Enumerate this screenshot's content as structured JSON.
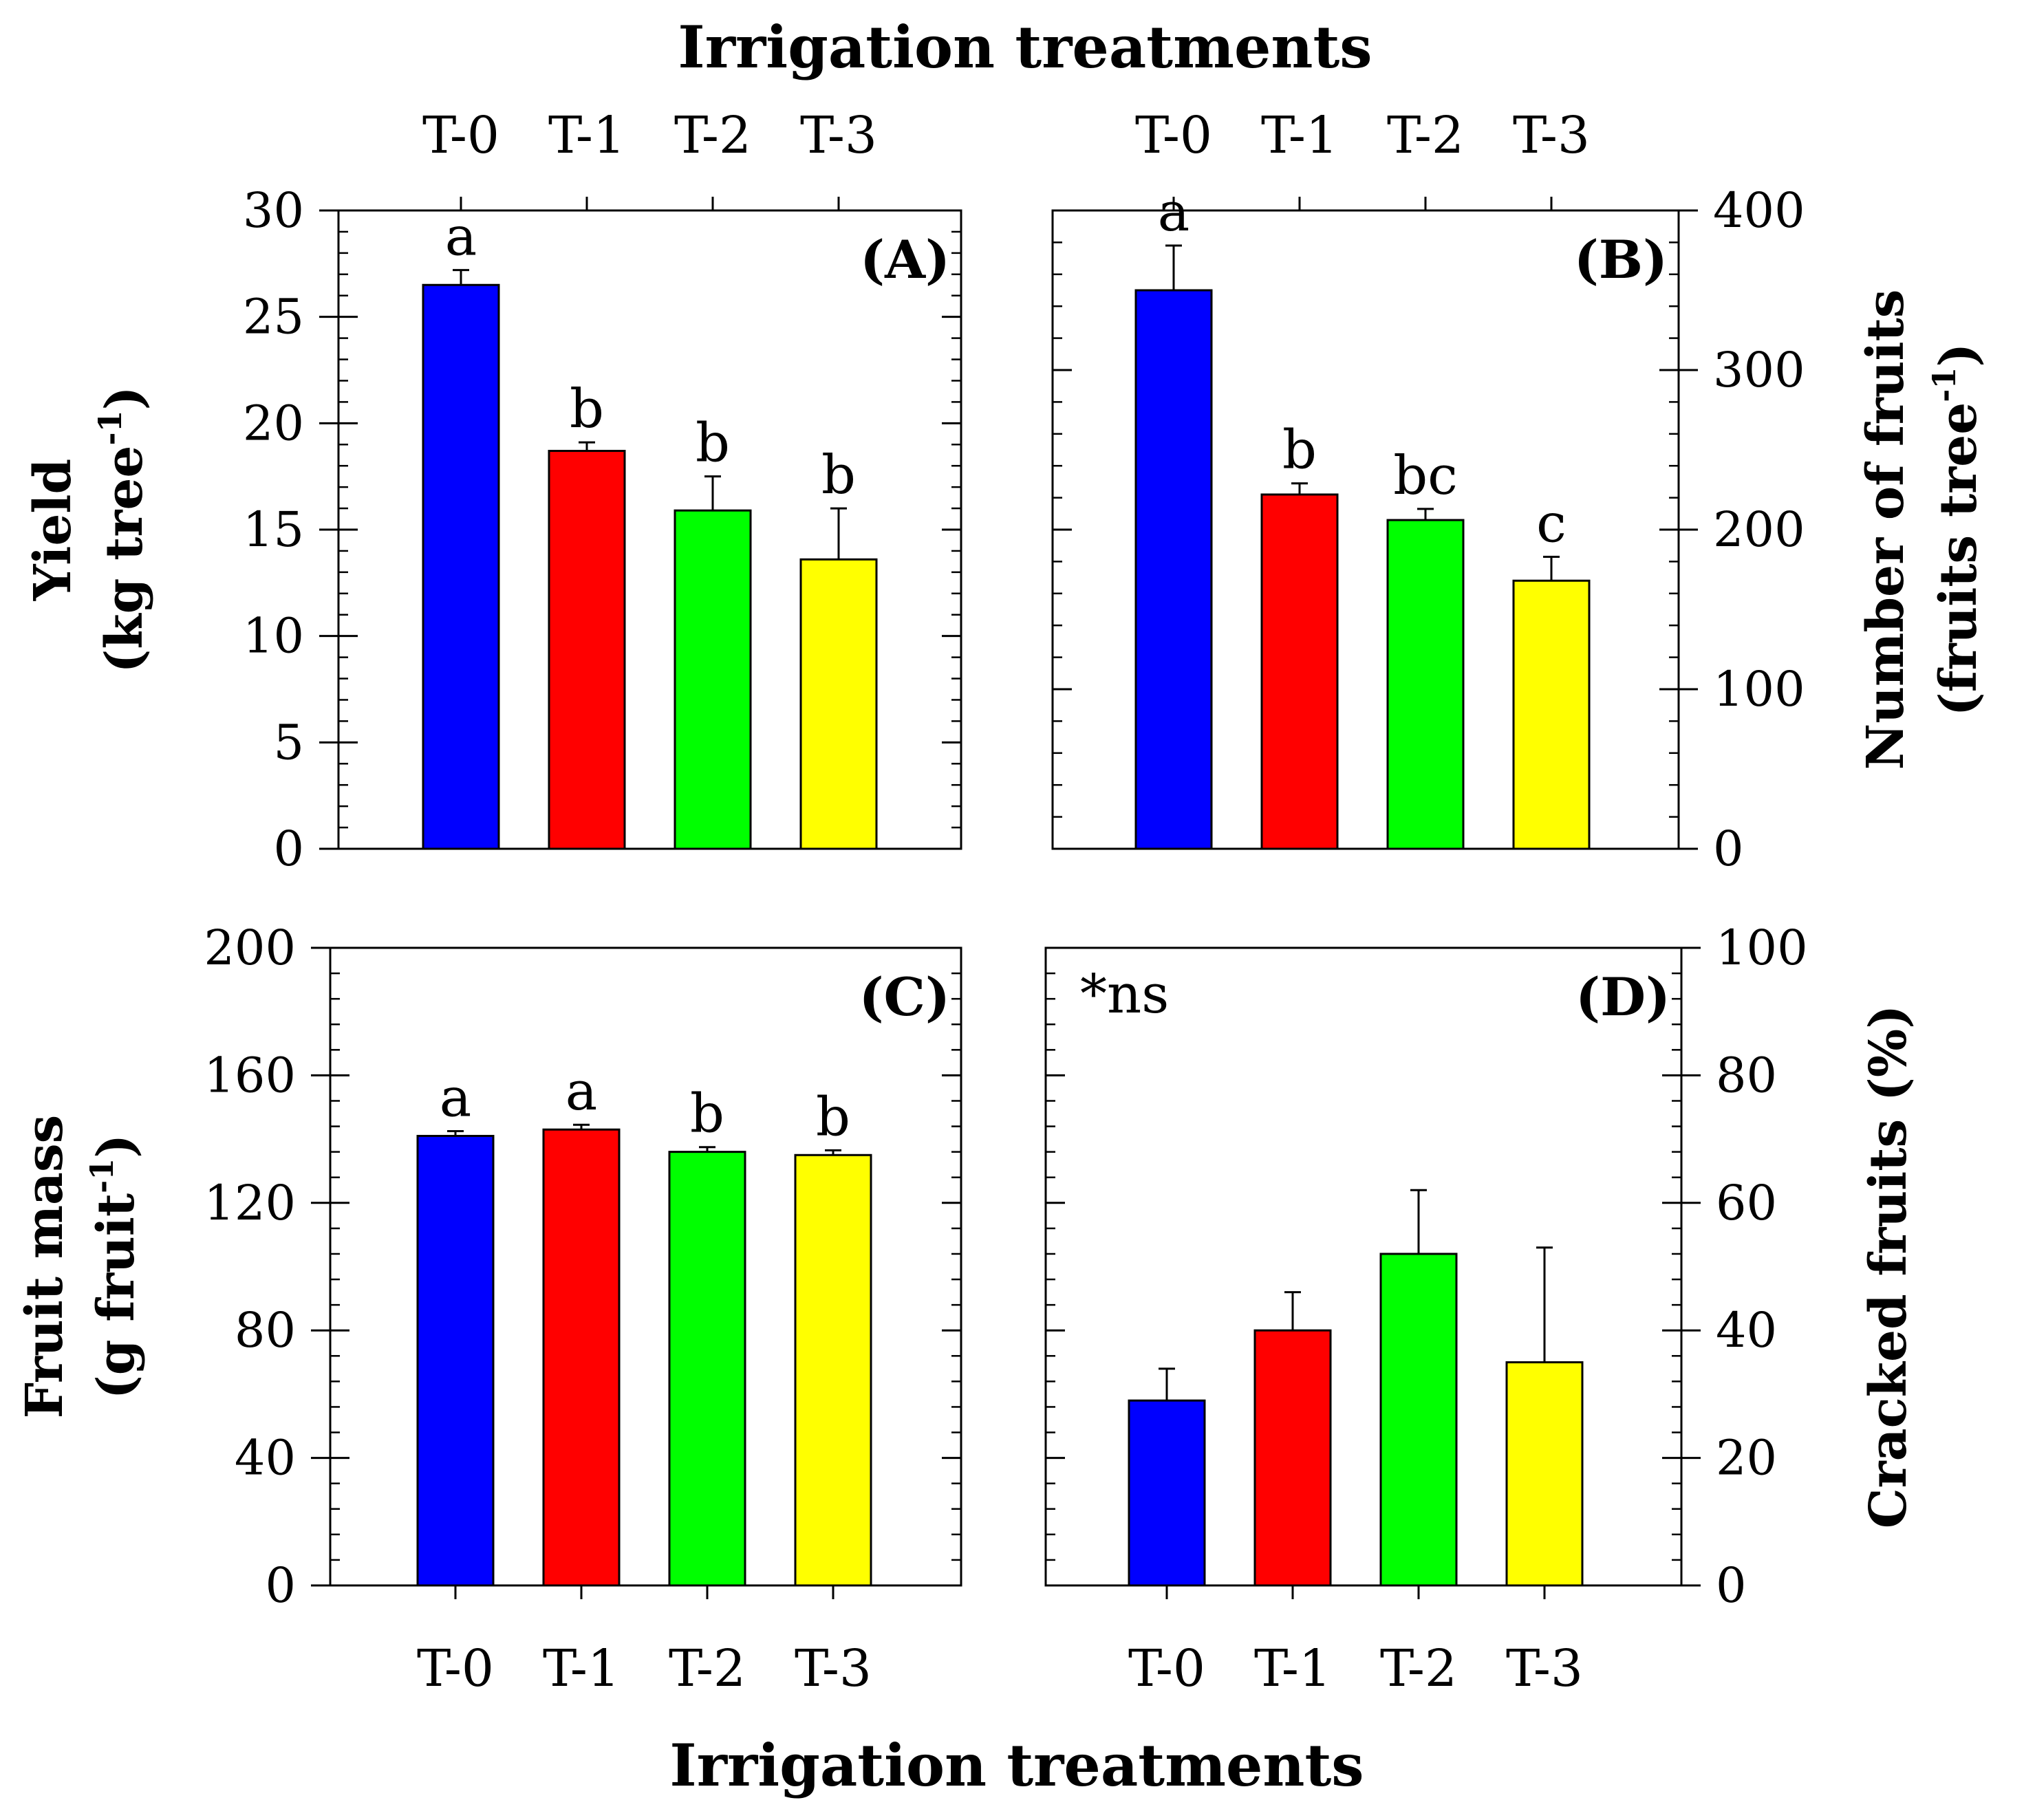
{
  "figure": {
    "top_title": "Irrigation treatments",
    "bottom_title": "Irrigation treatments"
  },
  "colors": {
    "T-0": "#0000ff",
    "T-1": "#ff0000",
    "T-2": "#00ff00",
    "T-3": "#ffff00",
    "axis": "#000000"
  },
  "chart_data": [
    {
      "panel": "(A)",
      "type": "bar",
      "categories": [
        "T-0",
        "T-1",
        "T-2",
        "T-3"
      ],
      "values": [
        26.5,
        18.7,
        15.9,
        13.6
      ],
      "errors": [
        0.7,
        0.4,
        1.6,
        2.4
      ],
      "significance": [
        "a",
        "b",
        "b",
        "b"
      ],
      "ylabel": "Yield",
      "ylabel_unit": "(kg tree",
      "ylabel_sup": "-1",
      "ylabel_close": ")",
      "ylim": [
        0,
        30
      ],
      "yticks": [
        0,
        5,
        10,
        15,
        20,
        25,
        30
      ],
      "y_axis_side": "left",
      "category_labels_position": "top",
      "annotation": ""
    },
    {
      "panel": "(B)",
      "type": "bar",
      "categories": [
        "T-0",
        "T-1",
        "T-2",
        "T-3"
      ],
      "values": [
        350,
        222,
        206,
        168
      ],
      "errors": [
        28,
        7,
        7,
        15
      ],
      "significance": [
        "a",
        "b",
        "bc",
        "c"
      ],
      "ylabel": "Number of fruits",
      "ylabel_unit": "(fruits tree",
      "ylabel_sup": "-1",
      "ylabel_close": ")",
      "ylim": [
        0,
        400
      ],
      "yticks": [
        0,
        100,
        200,
        300,
        400
      ],
      "y_axis_side": "right",
      "category_labels_position": "top",
      "annotation": ""
    },
    {
      "panel": "(C)",
      "type": "bar",
      "categories": [
        "T-0",
        "T-1",
        "T-2",
        "T-3"
      ],
      "values": [
        141,
        143,
        136,
        135
      ],
      "errors": [
        1.5,
        1.5,
        1.5,
        1.5
      ],
      "significance": [
        "a",
        "a",
        "b",
        "b"
      ],
      "ylabel": "Fruit mass",
      "ylabel_unit": "(g fruit",
      "ylabel_sup": "-1",
      "ylabel_close": ")",
      "ylim": [
        0,
        200
      ],
      "yticks": [
        0,
        40,
        80,
        120,
        160,
        200
      ],
      "y_axis_side": "left",
      "category_labels_position": "bottom",
      "annotation": ""
    },
    {
      "panel": "(D)",
      "type": "bar",
      "categories": [
        "T-0",
        "T-1",
        "T-2",
        "T-3"
      ],
      "values": [
        29,
        40,
        52,
        35
      ],
      "errors": [
        5,
        6,
        10,
        18
      ],
      "significance": [
        "",
        "",
        "",
        ""
      ],
      "ylabel": "Cracked fruits (%)",
      "ylabel_unit": "",
      "ylabel_sup": "",
      "ylabel_close": "",
      "ylim": [
        0,
        100
      ],
      "yticks": [
        0,
        20,
        40,
        60,
        80,
        100
      ],
      "y_axis_side": "right",
      "category_labels_position": "bottom",
      "annotation": "*ns"
    }
  ]
}
